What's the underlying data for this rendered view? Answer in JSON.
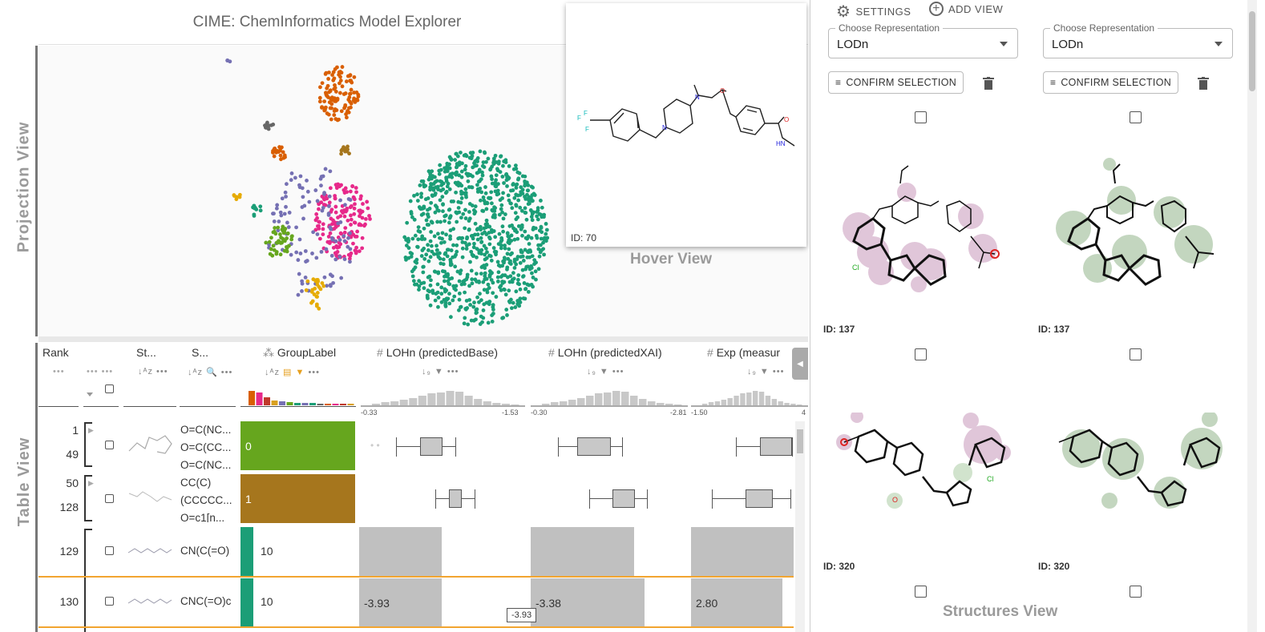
{
  "app": {
    "title": "CIME: ChemInformatics Model Explorer"
  },
  "side_labels": {
    "projection": "Projection View",
    "table": "Table View"
  },
  "hover": {
    "label": "Hover View",
    "id": "ID: 70"
  },
  "table": {
    "columns": [
      {
        "name": "Rank"
      },
      {
        "name": "St..."
      },
      {
        "name": "S..."
      },
      {
        "name": "GroupLabel"
      },
      {
        "name": "LOHn (predictedBase)",
        "min": "-0.33",
        "max": "-1.53"
      },
      {
        "name": "LOHn (predictedXAI)",
        "min": "-0.30",
        "max": "-2.81"
      },
      {
        "name": "Exp (measur",
        "min": "-1.50",
        "max": "4"
      }
    ],
    "hist_colors": [
      "#d95f02",
      "#e7298a",
      "#c0392b",
      "#d9a020",
      "#7570b3",
      "#66a61e",
      "#1b9e77",
      "#7570b3",
      "#1b9e77",
      "#666666"
    ],
    "rows": [
      {
        "rank_top": "1",
        "rank_bottom": "49",
        "smiles": [
          "O=C(NC...",
          "O=C(CC...",
          "O=C(NC..."
        ],
        "group": "0",
        "group_color": "#66a61e"
      },
      {
        "rank_top": "50",
        "rank_bottom": "128",
        "smiles": [
          "CC(C)",
          "(CCCCC...",
          "O=c1[n..."
        ],
        "group": "1",
        "group_color": "#a6761d"
      },
      {
        "rank": "129",
        "smiles": "CN(C(=O)",
        "group": "10",
        "group_color": "#1b9e77"
      },
      {
        "rank": "130",
        "smiles": "CNC(=O)c",
        "group": "10",
        "group_color": "#1b9e77",
        "base": "-3.93",
        "xai": "-3.38",
        "exp": "2.80"
      }
    ],
    "tooltip": "-3.93"
  },
  "right": {
    "settings": "SETTINGS",
    "add_view": "ADD VIEW",
    "views": [
      {
        "legend": "Choose Representation",
        "value": "LODn",
        "confirm": "CONFIRM SELECTION",
        "ids": [
          "ID: 137",
          "ID: 320"
        ]
      },
      {
        "legend": "Choose Representation",
        "value": "LODn",
        "confirm": "CONFIRM SELECTION",
        "ids": [
          "ID: 137",
          "ID: 320"
        ]
      }
    ],
    "label": "Structures View"
  },
  "colors": {
    "teal": "#1b9e77",
    "orange": "#d95f02",
    "pink": "#e7298a",
    "purple": "#7570b3",
    "olive": "#66a61e",
    "yellow": "#e6ab02",
    "brown": "#a6761d",
    "gray": "#666666",
    "accent": "#f2a530"
  }
}
